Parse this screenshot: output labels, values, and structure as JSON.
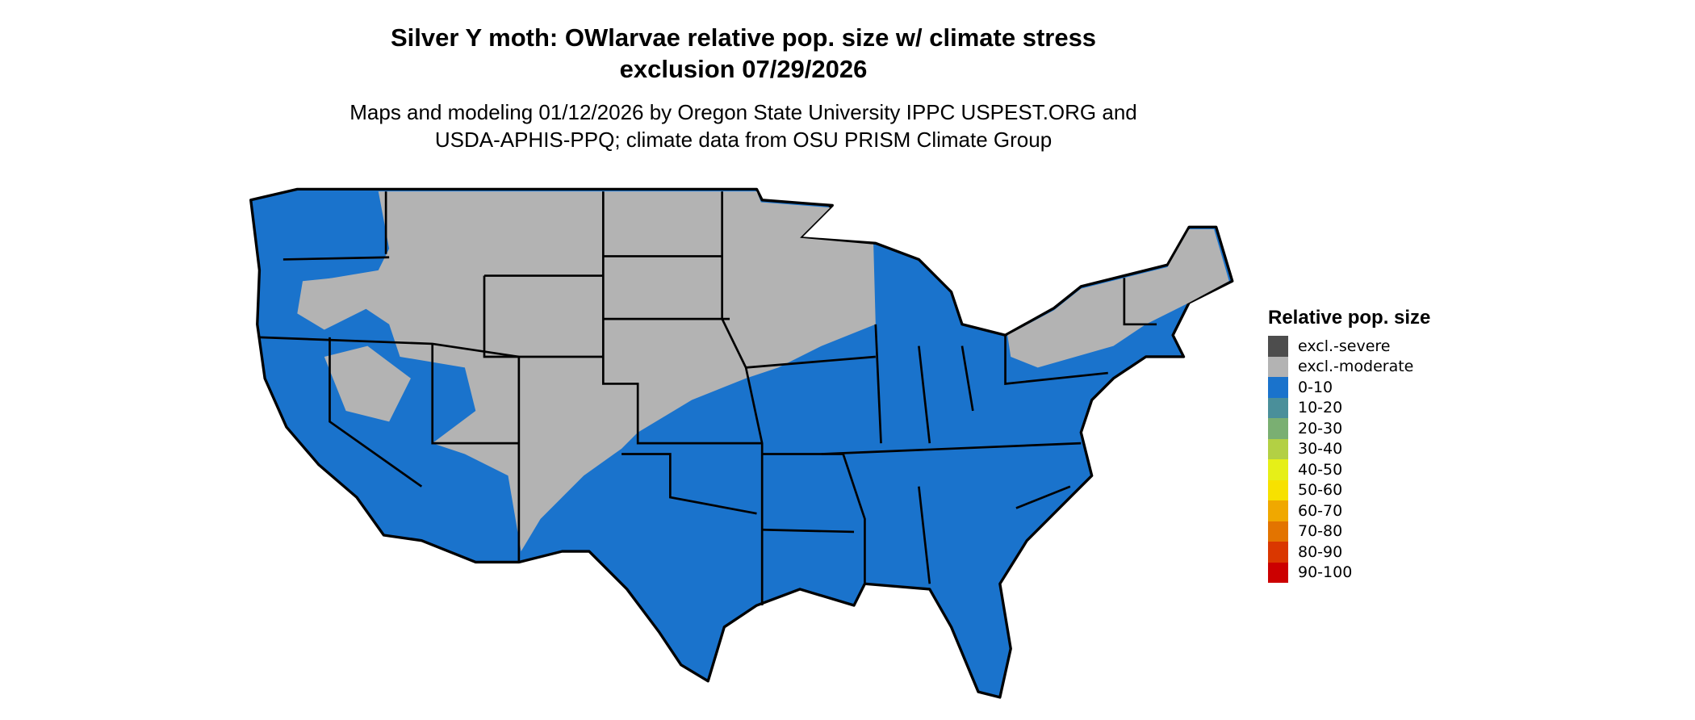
{
  "title": {
    "line1": "Silver Y moth: OWlarvae relative pop. size w/ climate stress",
    "line2": "exclusion 07/29/2026"
  },
  "subtitle": {
    "line1": "Maps and modeling 01/12/2026 by Oregon State University IPPC USPEST.ORG and",
    "line2": "USDA-APHIS-PPQ; climate data from OSU PRISM Climate Group"
  },
  "map": {
    "region": "Contiguous United States",
    "fill_colors": {
      "dominant": "#1a73cc",
      "excluded": "#b3b3b3"
    }
  },
  "legend": {
    "title": "Relative pop. size",
    "items": [
      {
        "label": "excl.-severe",
        "color": "#4d4d4d"
      },
      {
        "label": "excl.-moderate",
        "color": "#b3b3b3"
      },
      {
        "label": "0-10",
        "color": "#1a73cc"
      },
      {
        "label": "10-20",
        "color": "#4a8f9a"
      },
      {
        "label": "20-30",
        "color": "#7aaf72"
      },
      {
        "label": "30-40",
        "color": "#b3d044"
      },
      {
        "label": "40-50",
        "color": "#e6ef18"
      },
      {
        "label": "50-60",
        "color": "#f7e100"
      },
      {
        "label": "60-70",
        "color": "#f0a800"
      },
      {
        "label": "70-80",
        "color": "#e37400"
      },
      {
        "label": "80-90",
        "color": "#da3700"
      },
      {
        "label": "90-100",
        "color": "#cc0000"
      }
    ]
  }
}
